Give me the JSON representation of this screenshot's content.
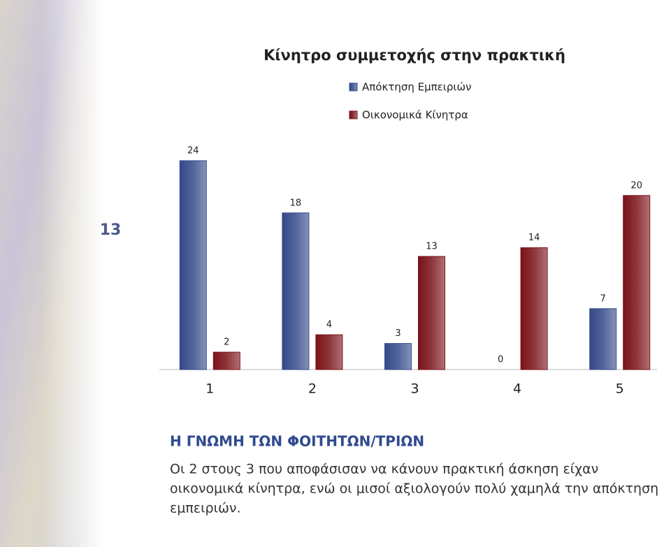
{
  "slide_number": "13",
  "chart_data": {
    "type": "bar",
    "title": "Κίνητρο συμμετοχής στην πρακτική",
    "categories": [
      "1",
      "2",
      "3",
      "4",
      "5"
    ],
    "series": [
      {
        "name": "Απόκτηση Εμπειριών",
        "color": "#34498a",
        "values": [
          24,
          18,
          3,
          0,
          7
        ]
      },
      {
        "name": "Οικονομικά Κίνητρα",
        "color": "#7a1218",
        "values": [
          2,
          4,
          13,
          14,
          20
        ]
      }
    ],
    "legend": "top-right"
  },
  "heading": "Η ΓΝΩΜΗ ΤΩΝ ΦΟΙΤΗΤΩΝ/ΤΡΙΩΝ",
  "body_lines": [
    "Οι 2 στους 3 που αποφάσισαν να κάνουν πρακτική άσκηση είχαν",
    "οικονομικά κίνητρα, ενώ οι μισοί αξιολογούν πολύ χαμηλά την απόκτηση",
    "εμπειριών."
  ]
}
